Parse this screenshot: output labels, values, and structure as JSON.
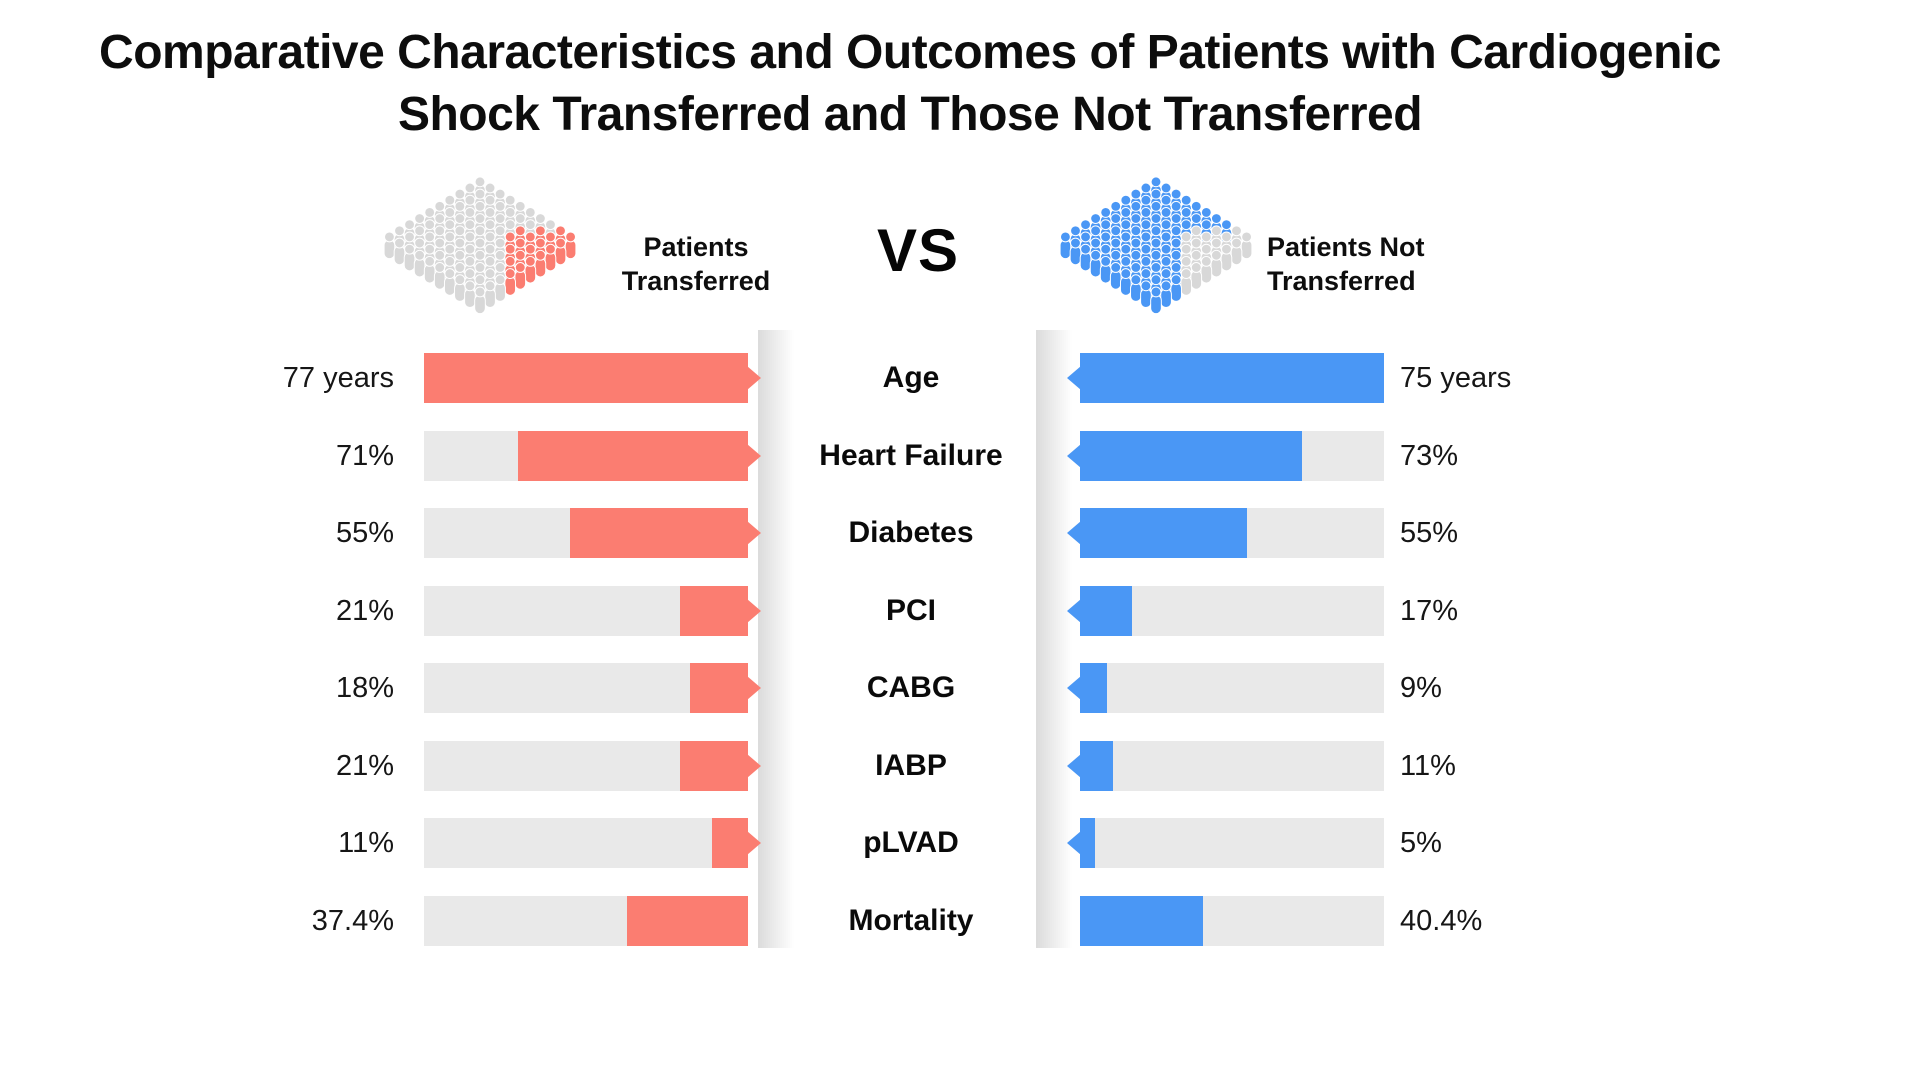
{
  "title": {
    "line1": "Comparative Characteristics and Outcomes of Patients with Cardiogenic",
    "line2": "Shock Transferred and Those Not Transferred"
  },
  "legend": {
    "left": {
      "line1": "Patients",
      "line2": "Transferred",
      "icon": "crowd-icon",
      "base_color": "#D8D8D8",
      "cluster_color": "#FB7D71"
    },
    "vs": "VS",
    "right": {
      "line1": "Patients Not",
      "line2": "Transferred",
      "icon": "crowd-icon",
      "base_color": "#4A97F5",
      "cluster_color": "#D8D8D8"
    }
  },
  "colors": {
    "left_bar": "#FB7D71",
    "right_bar": "#4A97F5",
    "track": "#E9E9E9"
  },
  "rows": [
    {
      "label": "Age",
      "left_value": "77 years",
      "left_pct": 100,
      "right_value": "75 years",
      "right_pct": 100,
      "arrow": true
    },
    {
      "label": "Heart Failure",
      "left_value": "71%",
      "left_pct": 71,
      "right_value": "73%",
      "right_pct": 73,
      "arrow": true
    },
    {
      "label": "Diabetes",
      "left_value": "55%",
      "left_pct": 55,
      "right_value": "55%",
      "right_pct": 55,
      "arrow": true
    },
    {
      "label": "PCI",
      "left_value": "21%",
      "left_pct": 21,
      "right_value": "17%",
      "right_pct": 17,
      "arrow": true
    },
    {
      "label": "CABG",
      "left_value": "18%",
      "left_pct": 18,
      "right_value": "9%",
      "right_pct": 9,
      "arrow": true
    },
    {
      "label": "IABP",
      "left_value": "21%",
      "left_pct": 21,
      "right_value": "11%",
      "right_pct": 11,
      "arrow": true
    },
    {
      "label": "pLVAD",
      "left_value": "11%",
      "left_pct": 11,
      "right_value": "5%",
      "right_pct": 5,
      "arrow": true
    },
    {
      "label": "Mortality",
      "left_value": "37.4%",
      "left_pct": 37.4,
      "right_value": "40.4%",
      "right_pct": 40.4,
      "arrow": false
    }
  ],
  "chart_data": {
    "type": "bar",
    "subtype": "butterfly-comparison",
    "title": "Comparative Characteristics and Outcomes of Patients with Cardiogenic Shock Transferred and Those Not Transferred",
    "categories": [
      "Age",
      "Heart Failure",
      "Diabetes",
      "PCI",
      "CABG",
      "IABP",
      "pLVAD",
      "Mortality"
    ],
    "series": [
      {
        "name": "Patients Transferred",
        "color": "#FB7D71",
        "labels": [
          "77 years",
          "71%",
          "55%",
          "21%",
          "18%",
          "21%",
          "11%",
          "37.4%"
        ],
        "values": [
          77,
          71,
          55,
          21,
          18,
          21,
          11,
          37.4
        ],
        "units": [
          "years",
          "%",
          "%",
          "%",
          "%",
          "%",
          "%",
          "%"
        ],
        "bar_fill_fraction_pct": [
          100,
          71,
          55,
          21,
          18,
          21,
          11,
          37.4
        ]
      },
      {
        "name": "Patients Not Transferred",
        "color": "#4A97F5",
        "labels": [
          "75 years",
          "73%",
          "55%",
          "17%",
          "9%",
          "11%",
          "5%",
          "40.4%"
        ],
        "values": [
          75,
          73,
          55,
          17,
          9,
          11,
          5,
          40.4
        ],
        "units": [
          "years",
          "%",
          "%",
          "%",
          "%",
          "%",
          "%",
          "%"
        ],
        "bar_fill_fraction_pct": [
          100,
          73,
          55,
          17,
          9,
          11,
          5,
          40.4
        ]
      }
    ],
    "legend_position": "top",
    "grid": false,
    "axes": "none (value labels printed beside each bar)"
  }
}
